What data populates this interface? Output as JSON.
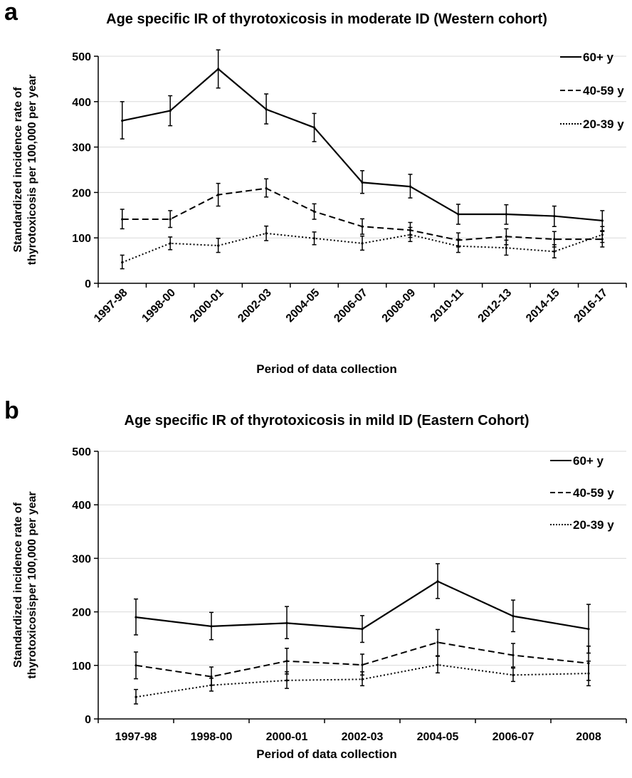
{
  "panels": [
    {
      "letter": "a"
    },
    {
      "letter": "b"
    }
  ],
  "chart_data": [
    {
      "type": "line",
      "title": "Age specific IR of thyrotoxicosis in moderate ID (Western cohort)",
      "xlabel": "Period of data collection",
      "ylabel_lines": [
        "Standardized incidence rate of",
        "thyrotoxicosis per 100,000 per year"
      ],
      "ylim": [
        0,
        500
      ],
      "yticks": [
        0,
        100,
        200,
        300,
        400,
        500
      ],
      "grid": true,
      "legend_position": "top-right",
      "categories": [
        "1997-98",
        "1998-00",
        "2000-01",
        "2002-03",
        "2004-05",
        "2006-07",
        "2008-09",
        "2010-11",
        "2012-13",
        "2014-15",
        "2016-17"
      ],
      "series": [
        {
          "name": "60+ y",
          "style": "solid",
          "values": [
            358,
            380,
            472,
            383,
            343,
            222,
            213,
            152,
            152,
            148,
            138
          ],
          "err_low": [
            318,
            347,
            430,
            351,
            312,
            198,
            188,
            130,
            130,
            125,
            116
          ],
          "err_high": [
            400,
            413,
            514,
            417,
            374,
            248,
            240,
            174,
            173,
            170,
            160
          ]
        },
        {
          "name": "40-59 y",
          "style": "dashed",
          "values": [
            141,
            141,
            195,
            209,
            158,
            125,
            117,
            95,
            103,
            97,
            97
          ],
          "err_low": [
            120,
            123,
            170,
            190,
            141,
            108,
            101,
            80,
            85,
            80,
            80
          ],
          "err_high": [
            163,
            160,
            220,
            230,
            175,
            142,
            134,
            111,
            120,
            114,
            114
          ]
        },
        {
          "name": "20-39 y",
          "style": "dotted",
          "values": [
            46,
            88,
            83,
            110,
            99,
            88,
            107,
            82,
            78,
            70,
            107
          ],
          "err_low": [
            32,
            74,
            68,
            94,
            85,
            73,
            92,
            68,
            62,
            56,
            90
          ],
          "err_high": [
            62,
            102,
            99,
            126,
            113,
            104,
            123,
            97,
            95,
            85,
            125
          ]
        }
      ]
    },
    {
      "type": "line",
      "title": "Age specific IR of thyrotoxicosis in mild ID (Eastern Cohort)",
      "xlabel": "Period of data collection",
      "ylabel_lines": [
        "Standardized incidence rate of",
        "thyrotoxicosisper 100,000 per year"
      ],
      "ylim": [
        0,
        500
      ],
      "yticks": [
        0,
        100,
        200,
        300,
        400,
        500
      ],
      "grid": true,
      "legend_position": "top-right",
      "categories": [
        "1997-98",
        "1998-00",
        "2000-01",
        "2002-03",
        "2004-05",
        "2006-07",
        "2008"
      ],
      "series": [
        {
          "name": "60+ y",
          "style": "solid",
          "values": [
            190,
            173,
            179,
            168,
            257,
            192,
            168
          ],
          "err_low": [
            157,
            148,
            150,
            143,
            225,
            163,
            123
          ],
          "err_high": [
            224,
            199,
            210,
            193,
            290,
            222,
            214
          ]
        },
        {
          "name": "40-59 y",
          "style": "dashed",
          "values": [
            100,
            79,
            108,
            101,
            143,
            119,
            104
          ],
          "err_low": [
            75,
            63,
            84,
            82,
            118,
            97,
            72
          ],
          "err_high": [
            125,
            97,
            132,
            121,
            167,
            141,
            136
          ]
        },
        {
          "name": "20-39 y",
          "style": "dotted",
          "values": [
            41,
            63,
            72,
            74,
            101,
            82,
            85
          ],
          "err_low": [
            28,
            52,
            57,
            62,
            86,
            70,
            62
          ],
          "err_high": [
            55,
            76,
            88,
            88,
            117,
            95,
            108
          ]
        }
      ]
    }
  ]
}
